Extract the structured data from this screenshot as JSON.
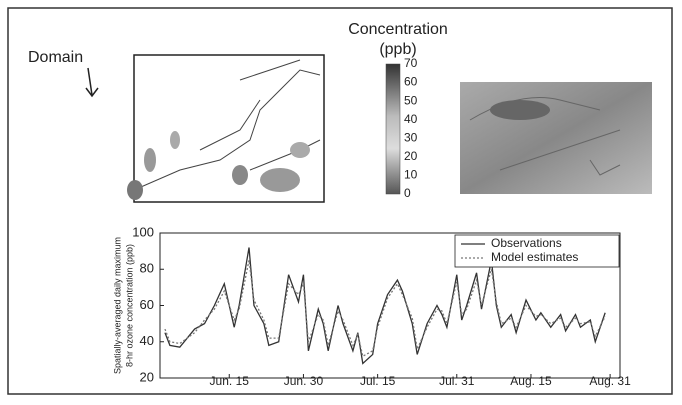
{
  "annotations": {
    "domain": "Domain"
  },
  "colorbar": {
    "title": [
      "Concentration",
      "(ppb)"
    ],
    "ticks": [
      0,
      10,
      20,
      30,
      40,
      50,
      60,
      70
    ]
  },
  "chart_data": {
    "type": "line",
    "ylabel": [
      "Spatially-averaged daily maximum",
      "8-hr ozone concentration (ppb)"
    ],
    "xlim": [
      0,
      93
    ],
    "xticks": [
      {
        "value": 14,
        "label": "Jun. 15"
      },
      {
        "value": 29,
        "label": "Jun. 30"
      },
      {
        "value": 44,
        "label": "Jul. 15"
      },
      {
        "value": 60,
        "label": "Jul. 31"
      },
      {
        "value": 75,
        "label": "Aug. 15"
      },
      {
        "value": 91,
        "label": "Aug. 31"
      }
    ],
    "ylim": [
      20,
      100
    ],
    "yticks": [
      20,
      40,
      60,
      80,
      100
    ],
    "legend": "upper right",
    "x": [
      1,
      2,
      4,
      7,
      9,
      11,
      13,
      15,
      16,
      18,
      19,
      21,
      22,
      24,
      26,
      28,
      29,
      30,
      32,
      33,
      34,
      36,
      37,
      39,
      40,
      41,
      43,
      44,
      46,
      48,
      49,
      51,
      52,
      54,
      56,
      57,
      58,
      60,
      61,
      62,
      64,
      65,
      67,
      68,
      69,
      71,
      72,
      74,
      76,
      77,
      79,
      81,
      82,
      84,
      85,
      87,
      88,
      90
    ],
    "series": [
      {
        "name": "Observations",
        "color": "#333333",
        "dash": "none",
        "values": [
          45,
          38,
          37,
          47,
          50,
          60,
          72,
          48,
          60,
          92,
          60,
          50,
          38,
          40,
          77,
          62,
          77,
          35,
          58,
          50,
          35,
          60,
          50,
          35,
          45,
          28,
          33,
          50,
          66,
          74,
          68,
          50,
          33,
          50,
          60,
          55,
          48,
          77,
          52,
          60,
          78,
          58,
          85,
          60,
          48,
          55,
          45,
          63,
          52,
          56,
          48,
          55,
          46,
          55,
          48,
          52,
          40,
          56
        ]
      },
      {
        "name": "Model estimates",
        "color": "#777777",
        "dash": "2,2",
        "values": [
          47,
          40,
          39,
          45,
          52,
          58,
          68,
          52,
          58,
          85,
          63,
          52,
          42,
          42,
          72,
          66,
          72,
          40,
          55,
          52,
          38,
          57,
          52,
          38,
          44,
          32,
          35,
          48,
          64,
          72,
          66,
          53,
          36,
          48,
          58,
          57,
          50,
          73,
          55,
          58,
          74,
          60,
          80,
          62,
          50,
          53,
          48,
          60,
          54,
          55,
          50,
          53,
          48,
          53,
          50,
          51,
          43,
          54
        ]
      }
    ]
  }
}
